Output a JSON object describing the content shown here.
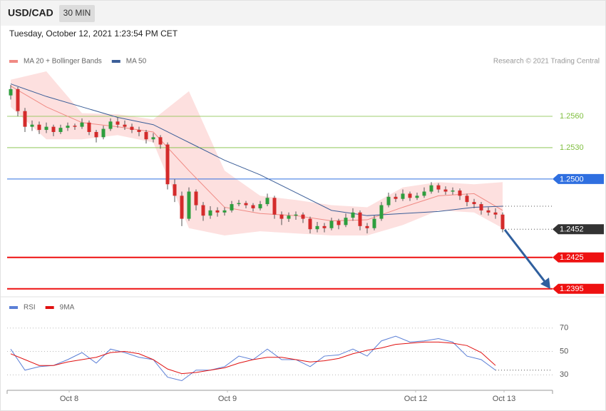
{
  "header": {
    "symbol": "USD/CAD",
    "timeframe": "30 MIN"
  },
  "timestamp": "Tuesday, October 12, 2021 1:23:54 PM CET",
  "copyright": "Research © 2021 Trading Central",
  "chart_data": [
    {
      "type": "candlestick",
      "up_color": "#2e9e3e",
      "down_color": "#d42b2b",
      "xlim": [
        -0.5,
        76
      ],
      "ylim": [
        1.2388,
        1.2603
      ],
      "candles": [
        [
          1.258,
          1.259,
          1.2576,
          1.2586
        ],
        [
          1.2586,
          1.2588,
          1.256,
          1.2565
        ],
        [
          1.2565,
          1.2568,
          1.2545,
          1.255
        ],
        [
          1.255,
          1.2556,
          1.2546,
          1.2552
        ],
        [
          1.2552,
          1.2555,
          1.2543,
          1.2547
        ],
        [
          1.2547,
          1.2554,
          1.2544,
          1.255
        ],
        [
          1.255,
          1.2552,
          1.2541,
          1.2545
        ],
        [
          1.2545,
          1.2552,
          1.2543,
          1.2549
        ],
        [
          1.2549,
          1.2554,
          1.2546,
          1.2551
        ],
        [
          1.2551,
          1.2553,
          1.2547,
          1.255
        ],
        [
          1.255,
          1.2558,
          1.2548,
          1.2554
        ],
        [
          1.2554,
          1.2556,
          1.2542,
          1.2545
        ],
        [
          1.2545,
          1.2547,
          1.2535,
          1.254
        ],
        [
          1.254,
          1.2551,
          1.2538,
          1.2548
        ],
        [
          1.2548,
          1.2558,
          1.2546,
          1.2555
        ],
        [
          1.2555,
          1.2559,
          1.2549,
          1.2552
        ],
        [
          1.2552,
          1.2556,
          1.2547,
          1.255
        ],
        [
          1.255,
          1.2553,
          1.2544,
          1.2547
        ],
        [
          1.2547,
          1.255,
          1.2541,
          1.2545
        ],
        [
          1.2545,
          1.2547,
          1.2534,
          1.2538
        ],
        [
          1.2538,
          1.2544,
          1.2535,
          1.254
        ],
        [
          1.254,
          1.2542,
          1.2529,
          1.2533
        ],
        [
          1.2533,
          1.2535,
          1.249,
          1.2495
        ],
        [
          1.2495,
          1.25,
          1.2478,
          1.2484
        ],
        [
          1.2484,
          1.2488,
          1.2455,
          1.2462
        ],
        [
          1.2462,
          1.2492,
          1.246,
          1.2488
        ],
        [
          1.2488,
          1.249,
          1.247,
          1.2475
        ],
        [
          1.2475,
          1.2478,
          1.246,
          1.2465
        ],
        [
          1.2465,
          1.2474,
          1.2462,
          1.247
        ],
        [
          1.247,
          1.2473,
          1.2464,
          1.2468
        ],
        [
          1.2468,
          1.2473,
          1.2465,
          1.247
        ],
        [
          1.247,
          1.2479,
          1.2468,
          1.2476
        ],
        [
          1.2476,
          1.248,
          1.2474,
          1.2477
        ],
        [
          1.2477,
          1.2479,
          1.2472,
          1.2475
        ],
        [
          1.2475,
          1.2477,
          1.2469,
          1.2472
        ],
        [
          1.2472,
          1.2479,
          1.247,
          1.2476
        ],
        [
          1.2476,
          1.2486,
          1.2474,
          1.2482
        ],
        [
          1.2482,
          1.2484,
          1.2462,
          1.2466
        ],
        [
          1.2466,
          1.2469,
          1.2456,
          1.2462
        ],
        [
          1.2462,
          1.2468,
          1.2459,
          1.2465
        ],
        [
          1.2465,
          1.2469,
          1.2461,
          1.2466
        ],
        [
          1.2466,
          1.2468,
          1.2458,
          1.2462
        ],
        [
          1.2462,
          1.2464,
          1.2448,
          1.2452
        ],
        [
          1.2452,
          1.2459,
          1.2449,
          1.2455
        ],
        [
          1.2455,
          1.2458,
          1.2449,
          1.2453
        ],
        [
          1.2453,
          1.2463,
          1.2451,
          1.246
        ],
        [
          1.246,
          1.2462,
          1.2452,
          1.2456
        ],
        [
          1.2456,
          1.2467,
          1.2454,
          1.2463
        ],
        [
          1.2463,
          1.2472,
          1.246,
          1.2468
        ],
        [
          1.2468,
          1.247,
          1.2451,
          1.2455
        ],
        [
          1.2455,
          1.2458,
          1.2448,
          1.2453
        ],
        [
          1.2453,
          1.2465,
          1.2451,
          1.2462
        ],
        [
          1.2462,
          1.2478,
          1.246,
          1.2475
        ],
        [
          1.2475,
          1.2487,
          1.2473,
          1.2483
        ],
        [
          1.2483,
          1.2486,
          1.2478,
          1.2481
        ],
        [
          1.2481,
          1.249,
          1.2479,
          1.2486
        ],
        [
          1.2486,
          1.2488,
          1.2479,
          1.2482
        ],
        [
          1.2482,
          1.2487,
          1.248,
          1.2484
        ],
        [
          1.2484,
          1.2492,
          1.2482,
          1.2488
        ],
        [
          1.2488,
          1.2497,
          1.2486,
          1.2494
        ],
        [
          1.2494,
          1.2496,
          1.2487,
          1.249
        ],
        [
          1.249,
          1.2493,
          1.2485,
          1.2488
        ],
        [
          1.2488,
          1.2492,
          1.2485,
          1.2489
        ],
        [
          1.2489,
          1.2491,
          1.248,
          1.2484
        ],
        [
          1.2484,
          1.2486,
          1.2474,
          1.2478
        ],
        [
          1.2478,
          1.2481,
          1.2472,
          1.2476
        ],
        [
          1.2476,
          1.2478,
          1.2466,
          1.247
        ],
        [
          1.247,
          1.2473,
          1.2465,
          1.2468
        ],
        [
          1.2468,
          1.2472,
          1.2462,
          1.2466
        ],
        [
          1.2466,
          1.2468,
          1.2449,
          1.2452
        ]
      ],
      "x": [
        0,
        5,
        10,
        15,
        20,
        25,
        30,
        35,
        40,
        45,
        50,
        55,
        60,
        65,
        69
      ],
      "series": [
        {
          "name": "MA 20 + Bollinger Bands",
          "color": "#f08a84",
          "band_color": "#fde0df",
          "values": [
            1.2589,
            1.2569,
            1.2554,
            1.255,
            1.2545,
            1.2508,
            1.2473,
            1.2467,
            1.2465,
            1.246,
            1.2461,
            1.2473,
            1.2484,
            1.2486,
            1.247
          ],
          "upper": [
            1.2595,
            1.2603,
            1.2563,
            1.2562,
            1.2557,
            1.2584,
            1.2508,
            1.2484,
            1.248,
            1.2475,
            1.2473,
            1.2492,
            1.2497,
            1.2495,
            1.2497
          ],
          "lower": [
            1.2569,
            1.2538,
            1.2538,
            1.2542,
            1.2535,
            1.2453,
            1.2446,
            1.245,
            1.2448,
            1.2446,
            1.2446,
            1.2456,
            1.247,
            1.2468,
            1.2453
          ]
        },
        {
          "name": "MA 50",
          "color": "#3b5e98",
          "values": [
            1.2591,
            1.2579,
            1.2569,
            1.2559,
            1.2552,
            1.2535,
            1.2518,
            1.2504,
            1.2487,
            1.247,
            1.2465,
            1.2467,
            1.2469,
            1.2473,
            1.2474
          ]
        }
      ],
      "levels": [
        {
          "value": 1.256,
          "label": "1.2560",
          "color": "#7fbf3f",
          "width": 0.8,
          "tag": false
        },
        {
          "value": 1.253,
          "label": "1.2530",
          "color": "#7fbf3f",
          "width": 0.8,
          "tag": false
        },
        {
          "value": 1.25,
          "label": "1.2500",
          "color": "#2f6fe0",
          "width": 1,
          "tag": true
        },
        {
          "value": 1.2452,
          "label": "1.2452",
          "color": "#333333",
          "width": 0,
          "tag": true
        },
        {
          "value": 1.2425,
          "label": "1.2425",
          "color": "#ee1111",
          "width": 2,
          "tag": true
        },
        {
          "value": 1.2395,
          "label": "1.2395",
          "color": "#ee1111",
          "width": 2,
          "tag": true
        }
      ]
    },
    {
      "type": "line",
      "xlim": [
        -0.5,
        76
      ],
      "ylim": [
        18,
        82
      ],
      "yticks": [
        70,
        50,
        30
      ],
      "x": [
        0,
        2,
        4,
        6,
        8,
        10,
        12,
        14,
        16,
        18,
        20,
        22,
        24,
        26,
        28,
        30,
        32,
        34,
        36,
        38,
        40,
        42,
        44,
        46,
        48,
        50,
        52,
        54,
        56,
        58,
        60,
        62,
        64,
        66,
        68
      ],
      "series": [
        {
          "name": "RSI",
          "color": "#5b7fd6",
          "values": [
            52,
            34,
            37,
            38,
            43,
            49,
            40,
            52,
            49,
            45,
            43,
            28,
            25,
            34,
            34,
            37,
            46,
            43,
            52,
            43,
            43,
            37,
            46,
            47,
            52,
            46,
            59,
            63,
            58,
            59,
            61,
            58,
            46,
            43,
            34
          ]
        },
        {
          "name": "9MA",
          "color": "#e01010",
          "values": [
            48,
            43,
            38,
            38,
            41,
            43,
            45,
            49,
            50,
            48,
            43,
            35,
            31,
            32,
            34,
            36,
            40,
            43,
            45,
            45,
            43,
            41,
            42,
            44,
            48,
            51,
            53,
            56,
            57,
            58,
            58,
            57,
            55,
            49,
            38
          ]
        }
      ],
      "xticks": [
        {
          "value": 8.2,
          "label": "Oct 8"
        },
        {
          "value": 30.4,
          "label": "Oct 9"
        },
        {
          "value": 56.8,
          "label": "Oct 12"
        },
        {
          "value": 69.2,
          "label": "Oct 13"
        }
      ]
    }
  ]
}
